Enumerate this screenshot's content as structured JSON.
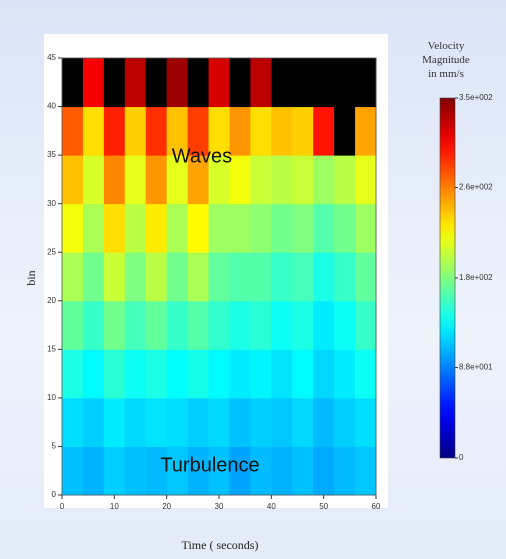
{
  "chart_data": {
    "type": "heatmap",
    "title": "Velocity Magnitude in mm/s",
    "x_label": "Time ( seconds)",
    "y_label": "bin",
    "annotations": [
      "Waves",
      "Turbulence"
    ],
    "x": [
      2,
      6,
      10,
      14,
      18,
      22,
      26,
      30,
      34,
      38,
      42,
      46,
      50,
      54,
      58
    ],
    "y": [
      2.5,
      7.5,
      12.5,
      17.5,
      22.5,
      27.5,
      32.5,
      37.5,
      42.5
    ],
    "values": [
      [
        110,
        105,
        115,
        110,
        108,
        112,
        105,
        110,
        100,
        108,
        105,
        110,
        102,
        108,
        112
      ],
      [
        120,
        115,
        125,
        118,
        122,
        120,
        115,
        118,
        110,
        115,
        112,
        118,
        108,
        115,
        120
      ],
      [
        140,
        130,
        145,
        135,
        140,
        132,
        138,
        130,
        125,
        128,
        122,
        130,
        118,
        125,
        135
      ],
      [
        165,
        150,
        170,
        155,
        165,
        150,
        160,
        148,
        140,
        145,
        135,
        140,
        125,
        135,
        150
      ],
      [
        190,
        170,
        200,
        175,
        195,
        170,
        190,
        165,
        160,
        160,
        150,
        155,
        140,
        150,
        165
      ],
      [
        215,
        190,
        230,
        195,
        225,
        190,
        220,
        185,
        185,
        180,
        170,
        175,
        160,
        170,
        185
      ],
      [
        240,
        205,
        260,
        210,
        255,
        210,
        250,
        205,
        215,
        200,
        195,
        200,
        185,
        195,
        210
      ],
      [
        275,
        230,
        295,
        235,
        290,
        240,
        285,
        230,
        255,
        230,
        240,
        235,
        300,
        380,
        250
      ],
      [
        380,
        310,
        380,
        330,
        380,
        340,
        380,
        320,
        380,
        330,
        380,
        360,
        380,
        380,
        380
      ]
    ],
    "xlim": [
      0,
      60
    ],
    "ylim": [
      0,
      45
    ],
    "xticks": [
      0,
      10,
      20,
      30,
      40,
      50,
      60
    ],
    "yticks": [
      0,
      5,
      10,
      15,
      20,
      25,
      30,
      35,
      40,
      45
    ],
    "clim": [
      0,
      350
    ],
    "cticks": [
      0,
      {
        "value": 88,
        "label": "8.8e+001"
      },
      {
        "value": 175,
        "label": "1.8e+002"
      },
      {
        "value": 263,
        "label": "2.6e+002"
      },
      {
        "value": 350,
        "label": "3.5e+002"
      }
    ],
    "colormap": "jet",
    "over_color": "#000000"
  }
}
